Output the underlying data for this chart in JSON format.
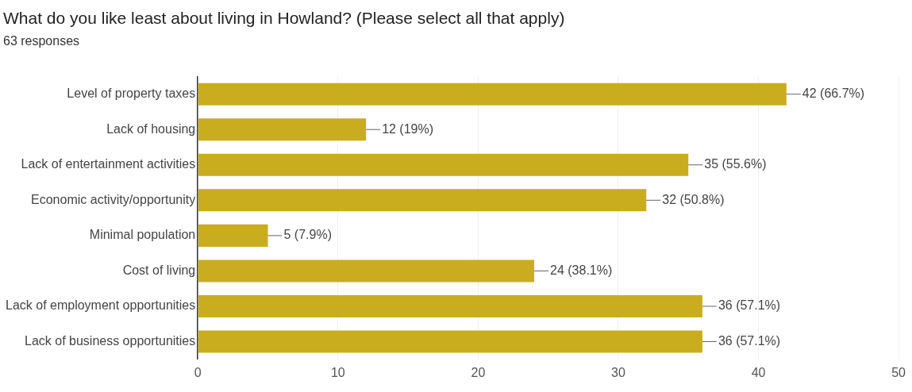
{
  "chart_data": {
    "type": "bar",
    "orientation": "horizontal",
    "title": "What do you like least about living in Howland? (Please select all that apply)",
    "subtitle": "63 responses",
    "categories": [
      "Level of property taxes",
      "Lack of housing",
      "Lack of entertainment activities",
      "Economic activity/opportunity",
      "Minimal population",
      "Cost of living",
      "Lack of employment opportunities",
      "Lack of business opportunities"
    ],
    "values": [
      42,
      12,
      35,
      32,
      5,
      24,
      36,
      36
    ],
    "value_labels": [
      "42 (66.7%)",
      "12 (19%)",
      "35 (55.6%)",
      "32 (50.8%)",
      "5 (7.9%)",
      "24 (38.1%)",
      "36 (57.1%)",
      "36 (57.1%)"
    ],
    "color": "#c9ad1f",
    "xlim": [
      0,
      50
    ],
    "xticks": [
      0,
      10,
      20,
      30,
      40,
      50
    ],
    "grid": "x",
    "legend": false
  }
}
